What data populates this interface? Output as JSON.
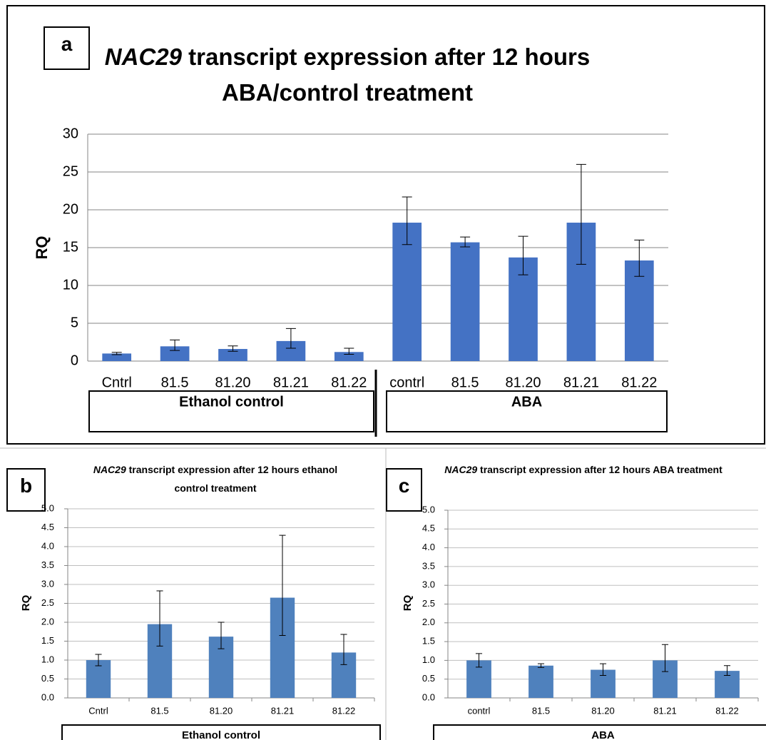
{
  "chart_data": [
    {
      "type": "bar",
      "panel_label": "a",
      "title_italic": "NAC29",
      "title": "transcript expression after 12 hours ABA/control treatment",
      "y_label": "RQ",
      "categories": [
        "Cntrl",
        "81.5",
        "81.20",
        "81.21",
        "81.22",
        "contrl",
        "81.5",
        "81.20",
        "81.21",
        "81.22"
      ],
      "values": [
        1.0,
        1.95,
        1.6,
        2.65,
        1.2,
        18.3,
        15.7,
        13.7,
        18.3,
        13.3
      ],
      "errors_plus": [
        0.15,
        0.85,
        0.4,
        1.65,
        0.5,
        3.4,
        0.7,
        2.8,
        7.7,
        2.7
      ],
      "errors_minus": [
        0.15,
        0.55,
        0.3,
        0.95,
        0.3,
        2.9,
        0.6,
        2.3,
        5.5,
        2.1
      ],
      "groups": [
        "Ethanol control",
        "ABA"
      ],
      "color": "#4472c4",
      "grid": true,
      "ylim": [
        0,
        30
      ],
      "yticks": [
        0,
        5,
        10,
        15,
        20,
        25,
        30
      ]
    },
    {
      "type": "bar",
      "panel_label": "b",
      "title_italic": "NAC29",
      "title": "transcript expression after 12 hours ethanol control treatment",
      "y_label": "RQ",
      "categories": [
        "Cntrl",
        "81.5",
        "81.20",
        "81.21",
        "81.22"
      ],
      "values": [
        1.0,
        1.95,
        1.62,
        2.65,
        1.2
      ],
      "errors_plus": [
        0.15,
        0.88,
        0.38,
        1.65,
        0.48
      ],
      "errors_minus": [
        0.15,
        0.58,
        0.32,
        1.0,
        0.32
      ],
      "groups": [
        "Ethanol control"
      ],
      "color": "#4f81bd",
      "grid": true,
      "ylim": [
        0,
        5
      ],
      "yticks": [
        {
          "value": 0,
          "label": "0.0"
        },
        {
          "value": 0.5,
          "label": "0.5"
        },
        {
          "value": 1,
          "label": "1.0"
        },
        {
          "value": 1.5,
          "label": "1.5"
        },
        {
          "value": 2,
          "label": "2.0"
        },
        {
          "value": 2.5,
          "label": "2.5"
        },
        {
          "value": 3,
          "label": "3.0"
        },
        {
          "value": 3.5,
          "label": "3.5"
        },
        {
          "value": 4,
          "label": "4.0"
        },
        {
          "value": 4.5,
          "label": "4.5"
        },
        {
          "value": 5,
          "label": "5.0"
        }
      ]
    },
    {
      "type": "bar",
      "panel_label": "c",
      "title_italic": "NAC29",
      "title": "transcript expression after 12 hours ABA treatment",
      "y_label": "RQ",
      "categories": [
        "contrl",
        "81.5",
        "81.20",
        "81.21",
        "81.22"
      ],
      "values": [
        1.0,
        0.86,
        0.75,
        1.0,
        0.72
      ],
      "errors_plus": [
        0.18,
        0.05,
        0.16,
        0.42,
        0.14
      ],
      "errors_minus": [
        0.18,
        0.05,
        0.15,
        0.3,
        0.12
      ],
      "groups": [
        "ABA"
      ],
      "color": "#4f81bd",
      "grid": true,
      "ylim": [
        0,
        5
      ],
      "yticks": [
        {
          "value": 0,
          "label": "0.0"
        },
        {
          "value": 0.5,
          "label": "0.5"
        },
        {
          "value": 1,
          "label": "1.0"
        },
        {
          "value": 1.5,
          "label": "1.5"
        },
        {
          "value": 2,
          "label": "2.0"
        },
        {
          "value": 2.5,
          "label": "2.5"
        },
        {
          "value": 3,
          "label": "3.0"
        },
        {
          "value": 3.5,
          "label": "3.5"
        },
        {
          "value": 4,
          "label": "4.0"
        },
        {
          "value": 4.5,
          "label": "4.5"
        },
        {
          "value": 5,
          "label": "5.0"
        }
      ]
    }
  ]
}
